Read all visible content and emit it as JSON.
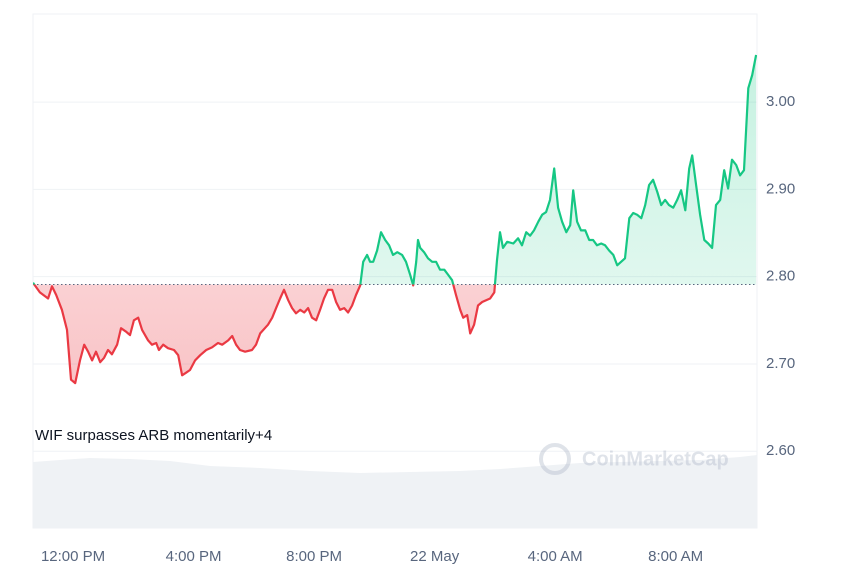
{
  "chart_data": {
    "type": "line",
    "annotation": "WIF surpasses ARB momentarily+4",
    "watermark": "CoinMarketCap",
    "up_color": "#16c784",
    "down_color": "#ea3943",
    "grid": true,
    "baseline": 2.791,
    "xlim": [
      -1.33,
      22.7
    ],
    "ylim": [
      2.512,
      3.101
    ],
    "xticks": [
      {
        "value": 0,
        "label": "12:00 PM"
      },
      {
        "value": 4,
        "label": "4:00 PM"
      },
      {
        "value": 8,
        "label": "8:00 PM"
      },
      {
        "value": 12,
        "label": "22 May"
      },
      {
        "value": 16,
        "label": "4:00 AM"
      },
      {
        "value": 20,
        "label": "8:00 AM"
      }
    ],
    "yticks": [
      {
        "value": 2.6,
        "label": "2.60"
      },
      {
        "value": 2.7,
        "label": "2.70"
      },
      {
        "value": 2.8,
        "label": "2.80"
      },
      {
        "value": 2.9,
        "label": "2.90"
      },
      {
        "value": 3,
        "label": "3.00"
      }
    ],
    "x": [
      -1.33,
      -1.1,
      -0.83,
      -0.7,
      -0.56,
      -0.37,
      -0.2,
      -0.07,
      0.07,
      0.23,
      0.37,
      0.5,
      0.63,
      0.76,
      0.9,
      1.03,
      1.16,
      1.29,
      1.46,
      1.59,
      1.76,
      1.89,
      2.02,
      2.16,
      2.29,
      2.49,
      2.62,
      2.76,
      2.85,
      2.99,
      3.15,
      3.35,
      3.49,
      3.62,
      3.75,
      3.88,
      4.05,
      4.22,
      4.42,
      4.61,
      4.81,
      4.95,
      5.15,
      5.28,
      5.41,
      5.54,
      5.71,
      5.94,
      6.07,
      6.21,
      6.47,
      6.61,
      6.74,
      6.87,
      7.0,
      7.14,
      7.27,
      7.4,
      7.54,
      7.67,
      7.8,
      7.93,
      8.07,
      8.2,
      8.33,
      8.46,
      8.6,
      8.73,
      8.86,
      9.0,
      9.13,
      9.26,
      9.39,
      9.53,
      9.63,
      9.76,
      9.86,
      9.96,
      10.09,
      10.22,
      10.36,
      10.49,
      10.62,
      10.76,
      10.92,
      11.05,
      11.19,
      11.29,
      11.39,
      11.45,
      11.52,
      11.65,
      11.78,
      11.92,
      12.05,
      12.18,
      12.32,
      12.45,
      12.58,
      12.71,
      12.85,
      12.95,
      13.08,
      13.18,
      13.31,
      13.44,
      13.58,
      13.71,
      13.84,
      13.98,
      14.07,
      14.17,
      14.27,
      14.41,
      14.61,
      14.77,
      14.9,
      15.04,
      15.17,
      15.3,
      15.44,
      15.57,
      15.7,
      15.83,
      15.97,
      16.1,
      16.23,
      16.37,
      16.5,
      16.6,
      16.73,
      16.86,
      17.0,
      17.13,
      17.26,
      17.39,
      17.53,
      17.66,
      17.79,
      17.93,
      18.06,
      18.19,
      18.32,
      18.46,
      18.59,
      18.72,
      18.86,
      18.99,
      19.12,
      19.25,
      19.39,
      19.52,
      19.65,
      19.78,
      19.92,
      20.05,
      20.18,
      20.32,
      20.45,
      20.55,
      20.68,
      20.81,
      20.95,
      21.08,
      21.21,
      21.34,
      21.48,
      21.61,
      21.74,
      21.87,
      22.01,
      22.14,
      22.27,
      22.41,
      22.54,
      22.67
    ],
    "values": [
      2.793,
      2.782,
      2.775,
      2.789,
      2.779,
      2.762,
      2.739,
      2.682,
      2.678,
      2.704,
      2.722,
      2.714,
      2.704,
      2.714,
      2.702,
      2.707,
      2.716,
      2.711,
      2.722,
      2.741,
      2.737,
      2.733,
      2.75,
      2.753,
      2.739,
      2.727,
      2.722,
      2.724,
      2.716,
      2.722,
      2.718,
      2.716,
      2.71,
      2.687,
      2.69,
      2.693,
      2.704,
      2.71,
      2.716,
      2.719,
      2.724,
      2.722,
      2.727,
      2.732,
      2.722,
      2.716,
      2.714,
      2.716,
      2.722,
      2.735,
      2.745,
      2.753,
      2.764,
      2.775,
      2.785,
      2.773,
      2.764,
      2.758,
      2.762,
      2.759,
      2.764,
      2.753,
      2.75,
      2.762,
      2.775,
      2.785,
      2.785,
      2.771,
      2.762,
      2.764,
      2.759,
      2.767,
      2.779,
      2.79,
      2.817,
      2.825,
      2.817,
      2.817,
      2.83,
      2.851,
      2.842,
      2.836,
      2.825,
      2.828,
      2.825,
      2.817,
      2.802,
      2.79,
      2.817,
      2.842,
      2.833,
      2.828,
      2.821,
      2.817,
      2.817,
      2.808,
      2.808,
      2.802,
      2.796,
      2.779,
      2.762,
      2.753,
      2.756,
      2.735,
      2.745,
      2.767,
      2.771,
      2.773,
      2.775,
      2.782,
      2.819,
      2.851,
      2.833,
      2.84,
      2.838,
      2.844,
      2.836,
      2.851,
      2.847,
      2.853,
      2.863,
      2.871,
      2.874,
      2.888,
      2.924,
      2.879,
      2.863,
      2.851,
      2.859,
      2.899,
      2.863,
      2.853,
      2.853,
      2.842,
      2.842,
      2.836,
      2.838,
      2.836,
      2.83,
      2.825,
      2.813,
      2.817,
      2.821,
      2.867,
      2.873,
      2.871,
      2.867,
      2.882,
      2.905,
      2.911,
      2.897,
      2.882,
      2.888,
      2.882,
      2.879,
      2.888,
      2.899,
      2.876,
      2.924,
      2.939,
      2.905,
      2.871,
      2.842,
      2.838,
      2.833,
      2.882,
      2.888,
      2.922,
      2.901,
      2.934,
      2.928,
      2.916,
      2.922,
      3.016,
      3.031,
      3.054
    ]
  }
}
